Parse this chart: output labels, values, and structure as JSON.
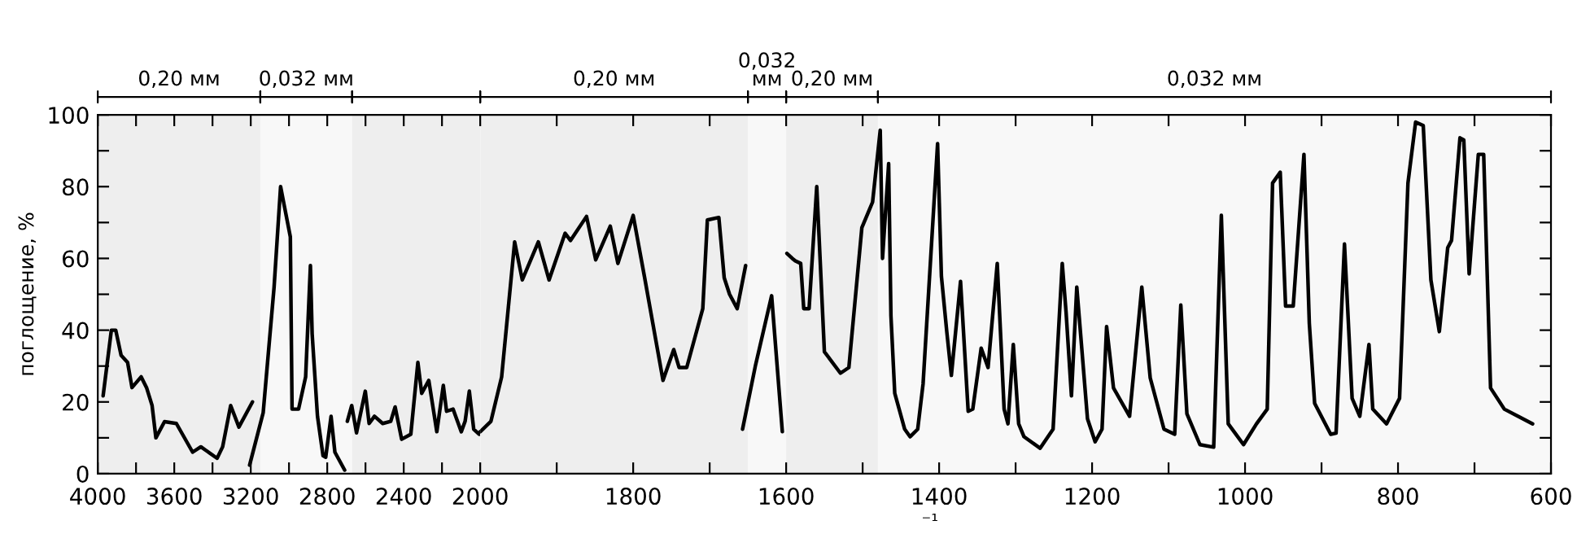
{
  "chart_data": [
    {
      "type": "line",
      "ylabel": "поглощение, %",
      "xlim": [
        4000,
        2000
      ],
      "ylim": [
        0,
        100
      ],
      "xticks": [
        4000,
        {
          "value": 3800,
          "label": null
        },
        3600,
        {
          "value": 3400,
          "label": null
        },
        3200,
        {
          "value": 3000,
          "label": null
        },
        2800,
        {
          "value": 2600,
          "label": null
        },
        2400,
        {
          "value": 2200,
          "label": null
        },
        2000
      ],
      "yticks": [
        0,
        {
          "value": 10,
          "label": null
        },
        20,
        {
          "value": 30,
          "label": null
        },
        40,
        {
          "value": 50,
          "label": null
        },
        60,
        {
          "value": 70,
          "label": null
        },
        80,
        {
          "value": 90,
          "label": null
        },
        100
      ],
      "grid": false,
      "marker": "none",
      "line_style": "solid",
      "bands": [
        {
          "axis": "x",
          "from": 4000,
          "to": 3150,
          "label": "0,20 мм",
          "color": "#eeeeee"
        },
        {
          "axis": "x",
          "from": 3150,
          "to": 2670,
          "label": "0,032 мм",
          "color": "#f8f8f8"
        },
        {
          "axis": "x",
          "from": 2670,
          "to": 2000,
          "label": null,
          "color": "#eeeeee"
        }
      ],
      "series": [
        {
          "color": "#000000",
          "x": [
            3972,
            3929,
            3906,
            3878,
            3844,
            3821,
            3773,
            3745,
            3716,
            3696,
            3651,
            3589,
            3504,
            3461,
            3376,
            3347,
            3305,
            3262,
            3191,
            3198,
            3206,
            3135,
            3078,
            3044,
            2993,
            2984,
            2950,
            2913,
            2888,
            2879,
            2851,
            2822,
            2808,
            2780,
            2760,
            2709,
            2702,
            2695,
            2672,
            2647,
            2601,
            2581,
            2553,
            2510,
            2468,
            2445,
            2411,
            2363,
            2326,
            2306,
            2269,
            2227,
            2193,
            2176,
            2142,
            2119,
            2099,
            2079,
            2057,
            2034,
            2006,
            2000
          ],
          "values": [
            21.7,
            40,
            40,
            33,
            31,
            24,
            27,
            24,
            19,
            10,
            14.5,
            14,
            6,
            7.5,
            4.3,
            7.5,
            19,
            13,
            20,
            null,
            2.4,
            17,
            52,
            80,
            66,
            18,
            18,
            27,
            58,
            39,
            16,
            5,
            4.6,
            16,
            6,
            1,
            null,
            14.6,
            19,
            11.4,
            23,
            14,
            16,
            14,
            14.6,
            18.6,
            9.6,
            11,
            31,
            22.4,
            26,
            11.7,
            24.6,
            17.4,
            18,
            14.6,
            11.7,
            14.6,
            23,
            12.4,
            11,
            11.7
          ]
        }
      ]
    },
    {
      "type": "line",
      "xlabel": "⁻¹",
      "xlim": [
        2000,
        600
      ],
      "ylim": [
        0,
        100
      ],
      "tick_labels": "x",
      "xticks": [
        {
          "value": 2000,
          "label": null
        },
        {
          "value": 1900,
          "label": null
        },
        1800,
        {
          "value": 1700,
          "label": null
        },
        1600,
        {
          "value": 1500,
          "label": null
        },
        1400,
        {
          "value": 1300,
          "label": null
        },
        1200,
        {
          "value": 1100,
          "label": null
        },
        1000,
        {
          "value": 900,
          "label": null
        },
        800,
        {
          "value": 700,
          "label": null
        },
        600
      ],
      "yticks": [
        0,
        {
          "value": 10,
          "label": null
        },
        20,
        {
          "value": 30,
          "label": null
        },
        40,
        {
          "value": 50,
          "label": null
        },
        60,
        {
          "value": 70,
          "label": null
        },
        80,
        {
          "value": 90,
          "label": null
        },
        100
      ],
      "grid": false,
      "marker": "none",
      "line_style": "solid",
      "bands": [
        {
          "axis": "x",
          "from": 2000,
          "to": 1650,
          "label": "0,20 мм",
          "color": "#eeeeee"
        },
        {
          "axis": "x",
          "from": 1650,
          "to": 1600,
          "label": "0,032 мм",
          "color": "#f8f8f8"
        },
        {
          "axis": "x",
          "from": 1600,
          "to": 1480,
          "label": "0,20 мм",
          "color": "#eeeeee"
        },
        {
          "axis": "x",
          "from": 1480,
          "to": 600,
          "label": "0,032 мм",
          "color": "#f8f8f8"
        }
      ],
      "series": [
        {
          "color": "#000000",
          "x": [
            2000,
            1986,
            1972,
            1955,
            1945,
            1924,
            1910,
            1889,
            1882,
            1861,
            1849,
            1830,
            1820,
            1800,
            1785,
            1761,
            1747,
            1740,
            1730,
            1709,
            1703,
            1688,
            1681,
            1674,
            1664,
            1653,
            1655,
            1657,
            1640,
            1619,
            1605,
            1602,
            1599,
            1592,
            1588,
            1581,
            1577,
            1570,
            1560,
            1550,
            1529,
            1518,
            1501,
            1487,
            1477,
            1474,
            1466,
            1463,
            1458,
            1445,
            1438,
            1428,
            1421,
            1402,
            1397,
            1390,
            1384,
            1372,
            1362,
            1356,
            1345,
            1336,
            1324,
            1315,
            1310,
            1303,
            1296,
            1289,
            1268,
            1251,
            1239,
            1234,
            1227,
            1220,
            1206,
            1196,
            1187,
            1181,
            1172,
            1151,
            1135,
            1124,
            1106,
            1092,
            1084,
            1076,
            1059,
            1041,
            1031,
            1022,
            1002,
            985,
            971,
            964,
            954,
            947,
            937,
            923,
            916,
            909,
            888,
            881,
            870,
            860,
            850,
            838,
            833,
            815,
            798,
            787,
            777,
            767,
            757,
            746,
            735,
            730,
            719,
            714,
            707,
            695,
            688,
            679,
            661,
            624
          ],
          "values": [
            11.7,
            14.6,
            27,
            64.6,
            54,
            64.6,
            54,
            67,
            65,
            71.7,
            59.6,
            69,
            58.6,
            72,
            54.6,
            26,
            34.6,
            29.6,
            29.6,
            46,
            70.7,
            71.4,
            54.6,
            50,
            46,
            58,
            null,
            12.4,
            30.3,
            49.6,
            11.7,
            null,
            61.4,
            60,
            59.3,
            58.6,
            46,
            46,
            80,
            34,
            28,
            29.6,
            68.6,
            75.7,
            95.7,
            60,
            86.4,
            44,
            22.4,
            12.4,
            10.3,
            12.4,
            25,
            92,
            55,
            39.6,
            27.4,
            53.6,
            17.4,
            18,
            35,
            29.6,
            58.6,
            18,
            13.9,
            36,
            13.9,
            10.3,
            7.1,
            12.4,
            58.6,
            45,
            21.7,
            52,
            15.3,
            8.9,
            12.4,
            41,
            23.9,
            16,
            52,
            26.7,
            12.4,
            11,
            47,
            16.7,
            8.1,
            7.4,
            72,
            13.9,
            8.1,
            13.9,
            18,
            81,
            84,
            46.7,
            46.7,
            89,
            42,
            19.6,
            11,
            11.3,
            64,
            21,
            16,
            36,
            18,
            13.9,
            21,
            81,
            98,
            97,
            54,
            39.6,
            63,
            65,
            93.6,
            93,
            55.7,
            89,
            89,
            23.9,
            18,
            13.9
          ]
        }
      ]
    }
  ]
}
